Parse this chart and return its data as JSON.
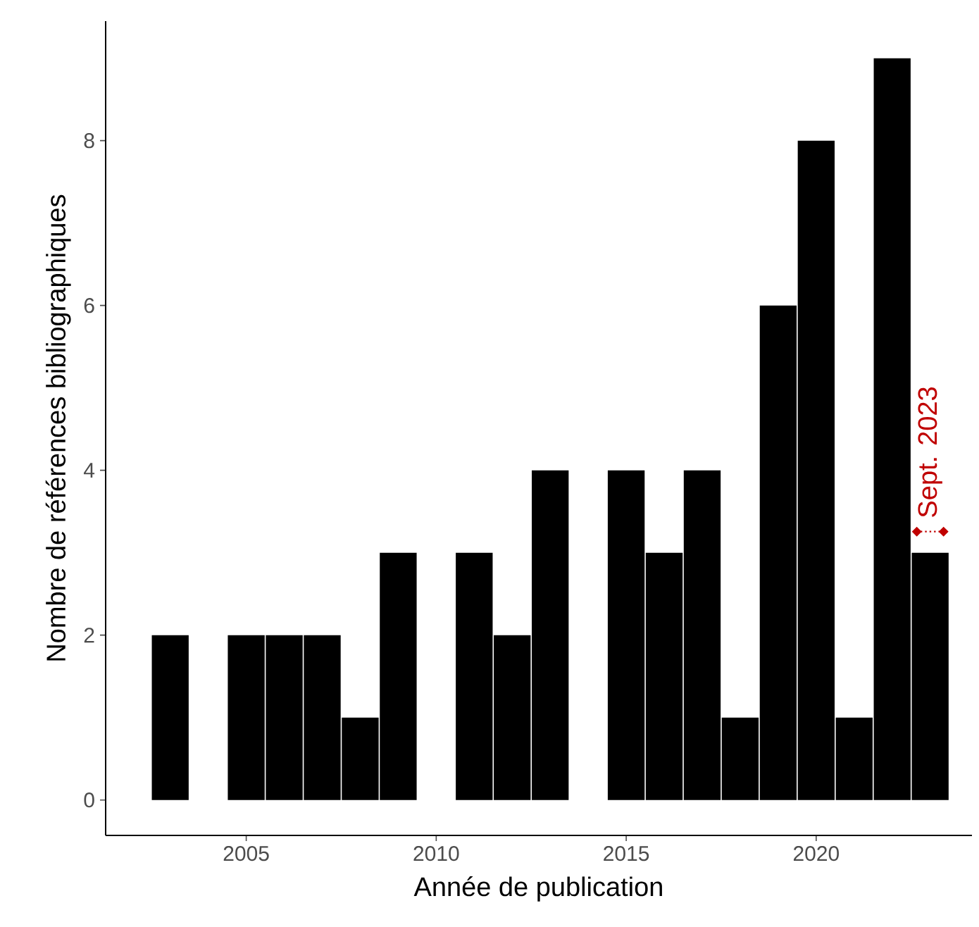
{
  "chart_data": {
    "type": "bar",
    "xlabel": "Année de publication",
    "ylabel": "Nombre de références bibliographiques",
    "x": [
      2003,
      2004,
      2005,
      2006,
      2007,
      2008,
      2009,
      2010,
      2011,
      2012,
      2013,
      2014,
      2015,
      2016,
      2017,
      2018,
      2019,
      2020,
      2021,
      2022,
      2023
    ],
    "values": [
      2,
      0,
      2,
      2,
      2,
      1,
      3,
      0,
      3,
      2,
      4,
      0,
      4,
      3,
      4,
      1,
      6,
      8,
      1,
      9,
      3
    ],
    "color": "#000000",
    "xlim": [
      2001.3,
      2024.1
    ],
    "ylim": [
      -0.43,
      9.45
    ],
    "xticks": [
      2005,
      2010,
      2015,
      2020
    ],
    "yticks": [
      0,
      2,
      4,
      6,
      8
    ],
    "annotations": [
      "Sept. 2023"
    ]
  }
}
